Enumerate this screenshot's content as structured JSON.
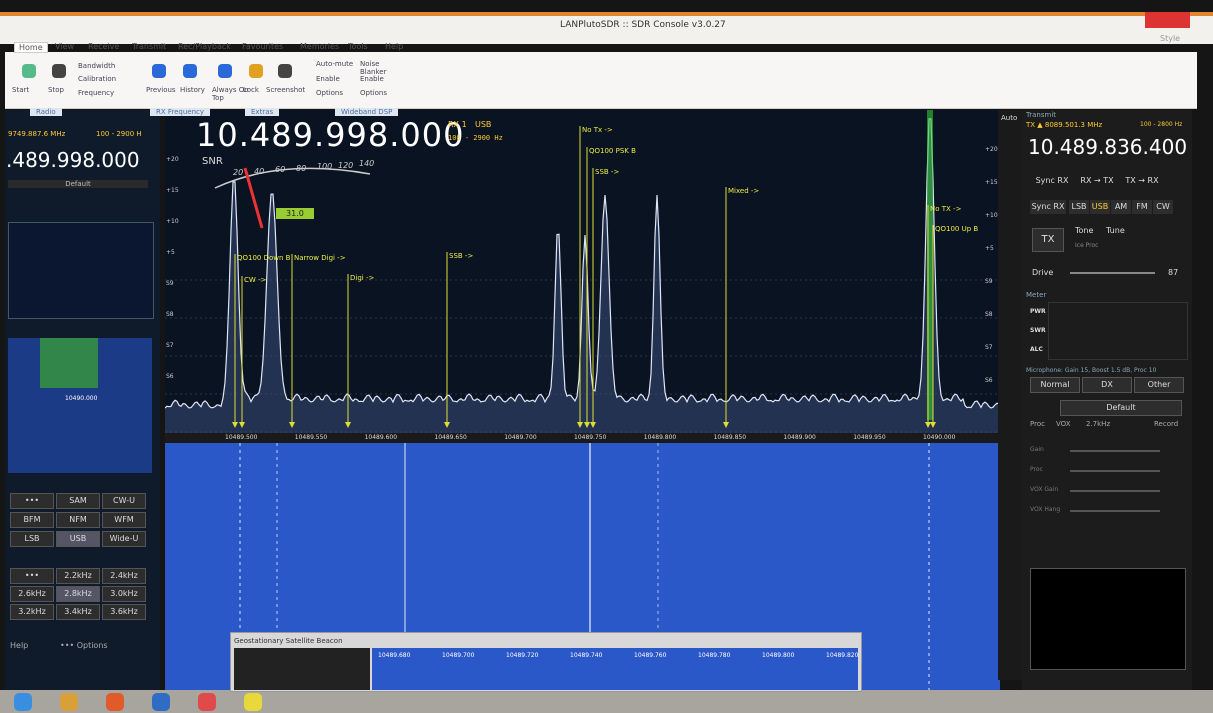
{
  "window": {
    "title": "LANPlutoSDR :: SDR Console v3.0.27",
    "style": "Style"
  },
  "ribbon": {
    "tabs": [
      "Home",
      "View",
      "Receive",
      "Transmit",
      "Rec/Playback",
      "Favourites",
      "Memories",
      "Tools",
      "Help"
    ],
    "groups": [
      {
        "label": "Radio",
        "buttons": [
          "Start",
          "Stop",
          "Bandwidth",
          "Calibration",
          "Frequency"
        ]
      },
      {
        "label": "RX Frequency",
        "buttons": [
          "Previous",
          "History"
        ]
      },
      {
        "label": "Extras",
        "buttons": [
          "Always On Top",
          "Lock",
          "Screenshot"
        ]
      },
      {
        "label": "Wideband DSP",
        "buttons": [
          "Auto-mute",
          "Enable",
          "Options",
          "Noise Blanker",
          "Enable",
          "Options"
        ]
      }
    ]
  },
  "left_panel": {
    "frequency_top": "9749.887.6 MHz",
    "bandwidth": "100 - 2900 H",
    "frequency": ".489.998.000",
    "preset": "Default",
    "waterfall_label": "10490.000",
    "modes": [
      "•••",
      "SAM",
      "CW-U",
      "BFM",
      "NFM",
      "WFM",
      "LSB",
      "USB",
      "Wide-U"
    ],
    "filters": [
      "•••",
      "2.2kHz",
      "2.4kHz",
      "2.6kHz",
      "2.8kHz",
      "3.0kHz",
      "3.2kHz",
      "3.4kHz",
      "3.6kHz"
    ],
    "help": "Help",
    "options": "••• Options"
  },
  "spectrum": {
    "frequency": "10.489.998.000",
    "rx": "RX 1",
    "mode": "USB",
    "bandwidth": "100 - 2900 Hz",
    "snr_label": "SNR",
    "snr_scale": [
      "20",
      "40",
      "60",
      "80",
      "100",
      "120",
      "140"
    ],
    "snr_value": "31.0",
    "level_labels": [
      "+20",
      "+15",
      "+10",
      "+5",
      "S9",
      "S8",
      "S7",
      "S6"
    ],
    "auto": "Auto",
    "freq_labels": [
      "10489.500",
      "10489.550",
      "10489.600",
      "10489.650",
      "10489.700",
      "10489.750",
      "10489.800",
      "10489.850",
      "10489.900",
      "10489.950",
      "10490.000"
    ],
    "markers": [
      "QO100 Down B",
      "CW ->",
      "Narrow Digi ->",
      "Digi ->",
      "SSB ->",
      "No Tx ->",
      "QO100 PSK B",
      "SSB ->",
      "Mixed ->",
      "No TX ->",
      "QO100 Up B"
    ]
  },
  "beacon": {
    "title": "Geostationary Satellite Beacon",
    "freq_labels": [
      "10489.680",
      "10489.700",
      "10489.720",
      "10489.740",
      "10489.760",
      "10489.780",
      "10489.800",
      "10489.820"
    ]
  },
  "right_panel": {
    "title": "Transmit",
    "tx_frequency": "TX ▲ 8089.501.3 MHz",
    "bandwidth": "100 - 2800 Hz",
    "frequency": "10.489.836.400",
    "sync_buttons": [
      "Sync RX",
      "RX → TX",
      "TX → RX"
    ],
    "mode_buttons": [
      "Sync RX",
      "LSB",
      "USB",
      "AM",
      "FM",
      "CW"
    ],
    "tx": "TX",
    "tone": "Tone",
    "tune": "Tune",
    "proc": "Ice Proc",
    "drive": "Drive",
    "drive_value": "87",
    "meter_title": "Meter",
    "meters": [
      "PWR",
      "SWR",
      "ALC"
    ],
    "mic_title": "Microphone: Gain 15, Boost 1.5 dB, Proc 10",
    "mic_presets": [
      "Normal",
      "DX",
      "Other"
    ],
    "mic_default": "Default",
    "mic_controls": [
      "Proc",
      "VOX",
      "2.7kHz",
      "Record"
    ],
    "sliders": [
      "Gain",
      "Proc",
      "VOX Gain",
      "VOX Hang"
    ]
  }
}
